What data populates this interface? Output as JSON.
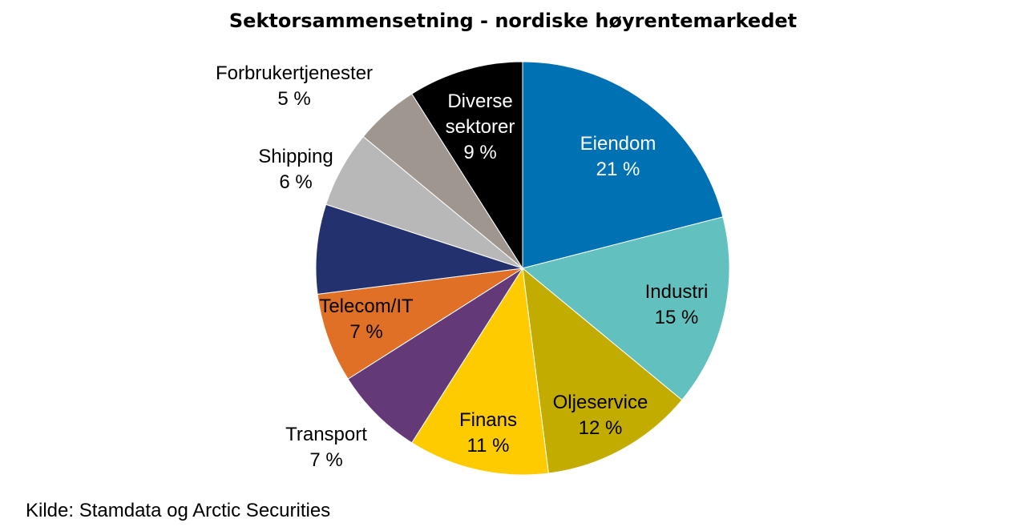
{
  "chart_data": {
    "type": "pie",
    "title": "Sektorsammensetning - nordiske høyrentemarkedet",
    "source": "Kilde: Stamdata og Arctic Securities",
    "slices": [
      {
        "label": [
          "Eiendom"
        ],
        "value": 21,
        "value_label": "21 %",
        "color": "#0071b2",
        "text_color": "#ffffff",
        "label_placement": "inside"
      },
      {
        "label": [
          "Industri"
        ],
        "value": 15,
        "value_label": "15 %",
        "color": "#62c1bf",
        "text_color": "#000000",
        "label_placement": "inside"
      },
      {
        "label": [
          "Oljeservice"
        ],
        "value": 12,
        "value_label": "12 %",
        "color": "#c3ac00",
        "text_color": "#000000",
        "label_placement": "inside"
      },
      {
        "label": [
          "Finans"
        ],
        "value": 11,
        "value_label": "11 %",
        "color": "#fdcb00",
        "text_color": "#000000",
        "label_placement": "inside"
      },
      {
        "label": [
          "Transport"
        ],
        "value": 7,
        "value_label": "7 %",
        "color": "#633a77",
        "text_color": "#000000",
        "label_placement": "outside"
      },
      {
        "label": [
          "Telecom/IT"
        ],
        "value": 7,
        "value_label": "7 %",
        "color": "#e07025",
        "text_color": "#000000",
        "label_placement": "inside"
      },
      {
        "label": [
          ""
        ],
        "value": 7,
        "value_label": "",
        "color": "#23326e",
        "text_color": "#ffffff",
        "label_placement": "none"
      },
      {
        "label": [
          "Shipping"
        ],
        "value": 6,
        "value_label": "6 %",
        "color": "#b8b8b8",
        "text_color": "#000000",
        "label_placement": "outside"
      },
      {
        "label": [
          "Forbrukertjenester"
        ],
        "value": 5,
        "value_label": "5 %",
        "color": "#a09690",
        "text_color": "#000000",
        "label_placement": "outside"
      },
      {
        "label": [
          "Diverse",
          "sektorer"
        ],
        "value": 9,
        "value_label": "9 %",
        "color": "#000000",
        "text_color": "#ffffff",
        "label_placement": "inside"
      }
    ]
  }
}
